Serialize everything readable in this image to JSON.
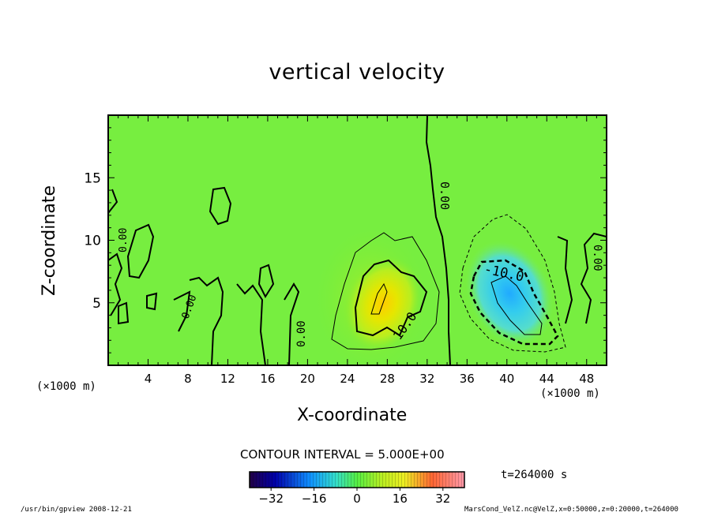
{
  "chart_data": {
    "type": "heatmap",
    "title": "vertical velocity",
    "xlabel": "X-coordinate",
    "ylabel": "Z-coordinate",
    "x_unit": "(×1000 m)",
    "z_unit": "(×1000 m)",
    "xlim": [
      0,
      50
    ],
    "zlim": [
      0,
      20
    ],
    "x_ticks": [
      "4",
      "8",
      "12",
      "16",
      "20",
      "24",
      "28",
      "32",
      "36",
      "40",
      "44",
      "48"
    ],
    "z_ticks": [
      "5",
      "10",
      "15"
    ],
    "contour_interval_label": "CONTOUR INTERVAL = 5.000E+00",
    "contour_labels": [
      "0.00",
      "0.00",
      "0.00",
      "0.00",
      "0.00",
      "10.0",
      "-10.0"
    ],
    "colorbar": {
      "min": -40,
      "max": 40,
      "tick_labels": [
        "−32",
        "−16",
        "0",
        "16",
        "32"
      ]
    },
    "features": [
      {
        "type": "updraft",
        "center_x": 27.5,
        "center_z": 5,
        "peak": 20
      },
      {
        "type": "downdraft",
        "center_x": 40.5,
        "center_z": 5,
        "peak": -20
      }
    ],
    "time_label": "t=264000 s"
  },
  "footer": {
    "left": "/usr/bin/gpview  2008-12-21",
    "right": "MarsCond_VelZ.nc@VelZ,x=0:50000,z=0:20000,t=264000"
  }
}
